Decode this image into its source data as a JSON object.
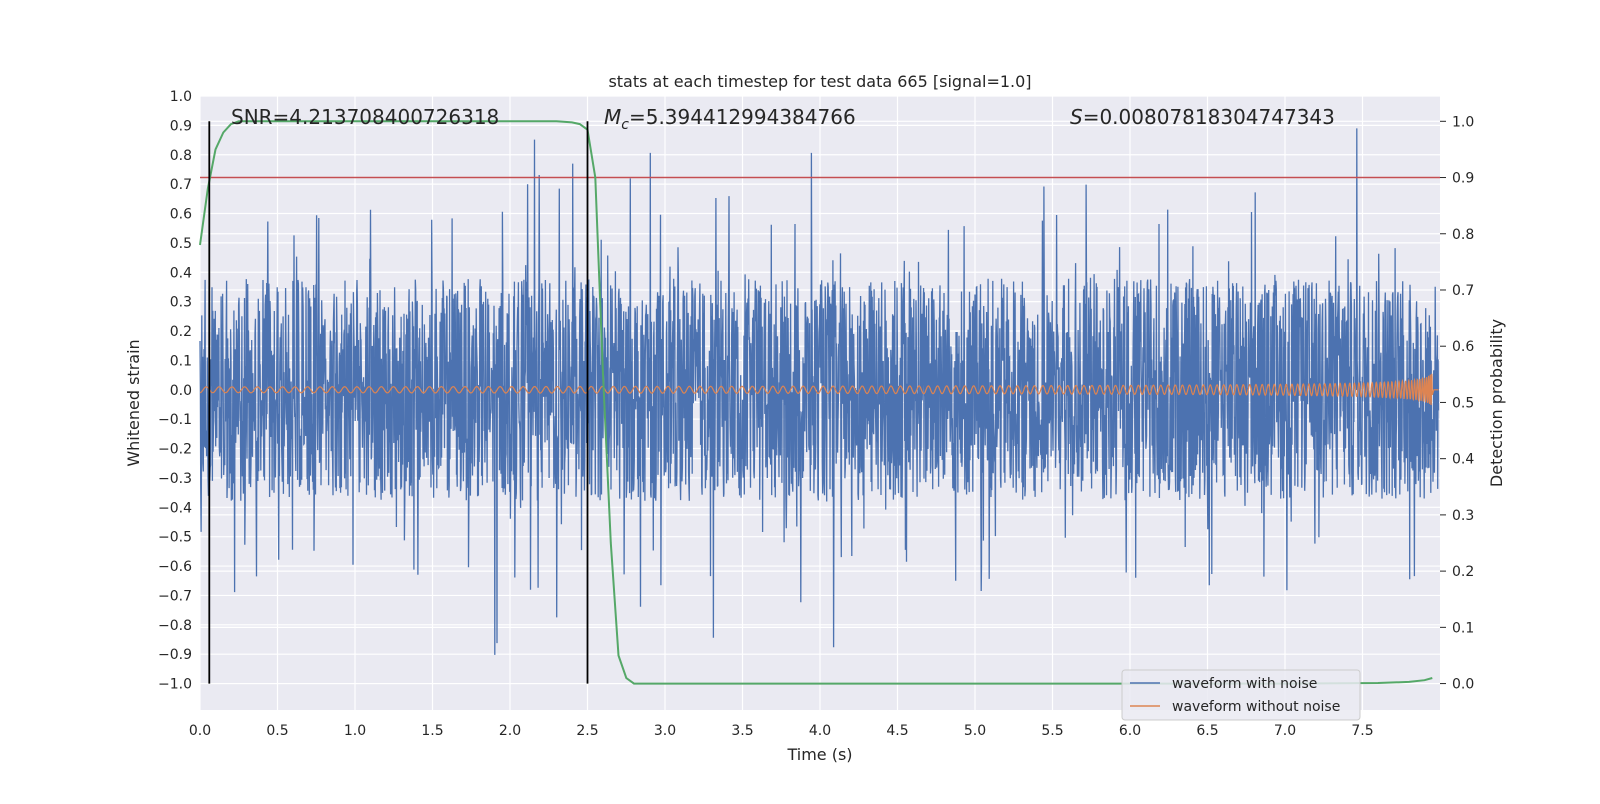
{
  "chart_data": {
    "type": "line",
    "title": "stats at each timestep for test data 665 [signal=1.0]",
    "xlabel": "Time (s)",
    "ylabel_left": "Whitened strain",
    "ylabel_right": "Detection probability",
    "xlim": [
      0.0,
      8.0
    ],
    "ylim_left": [
      -1.09,
      1.0
    ],
    "ylim_right": [
      -0.047,
      1.045
    ],
    "xticks": [
      "0.0",
      "0.5",
      "1.0",
      "1.5",
      "2.0",
      "2.5",
      "3.0",
      "3.5",
      "4.0",
      "4.5",
      "5.0",
      "5.5",
      "6.0",
      "6.5",
      "7.0",
      "7.5"
    ],
    "xtick_values": [
      0.0,
      0.5,
      1.0,
      1.5,
      2.0,
      2.5,
      3.0,
      3.5,
      4.0,
      4.5,
      5.0,
      5.5,
      6.0,
      6.5,
      7.0,
      7.5
    ],
    "yticks_left": [
      "−1.0",
      "−0.9",
      "−0.8",
      "−0.7",
      "−0.6",
      "−0.5",
      "−0.4",
      "−0.3",
      "−0.2",
      "−0.1",
      "0.0",
      "0.1",
      "0.2",
      "0.3",
      "0.4",
      "0.5",
      "0.6",
      "0.7",
      "0.8",
      "0.9",
      "1.0"
    ],
    "ytick_values_left": [
      -1.0,
      -0.9,
      -0.8,
      -0.7,
      -0.6,
      -0.5,
      -0.4,
      -0.3,
      -0.2,
      -0.1,
      0.0,
      0.1,
      0.2,
      0.3,
      0.4,
      0.5,
      0.6,
      0.7,
      0.8,
      0.9,
      1.0
    ],
    "yticks_right": [
      "0.0",
      "0.1",
      "0.2",
      "0.3",
      "0.4",
      "0.5",
      "0.6",
      "0.7",
      "0.8",
      "0.9",
      "1.0"
    ],
    "ytick_values_right": [
      0.0,
      0.1,
      0.2,
      0.3,
      0.4,
      0.5,
      0.6,
      0.7,
      0.8,
      0.9,
      1.0
    ],
    "annotations": {
      "snr": "SNR=4.213708400726318",
      "mc_symbol": "M",
      "mc_sub": "c",
      "mc_value": "=5.394412994384766",
      "s_symbol": "S",
      "s_value": "=0.00807818304747343"
    },
    "vertical_lines_x": [
      0.06,
      2.5
    ],
    "threshold_probability": 0.9,
    "series": [
      {
        "name": "waveform with noise",
        "color": "#4c72b0",
        "kind": "noise",
        "envelope_typical": 0.42,
        "peak_max": 0.92
      },
      {
        "name": "waveform without noise",
        "color": "#dd8452",
        "kind": "chirp",
        "amplitude_start": 0.01,
        "amplitude_end": 0.09,
        "end_time": 7.95
      },
      {
        "name": "Detection probability",
        "color": "#55a868",
        "axis": "right",
        "x": [
          0.0,
          0.05,
          0.1,
          0.15,
          0.2,
          0.25,
          0.3,
          0.5,
          1.0,
          1.5,
          2.0,
          2.3,
          2.4,
          2.45,
          2.5,
          2.55,
          2.6,
          2.65,
          2.7,
          2.75,
          2.8,
          2.9,
          3.5,
          5.0,
          7.0,
          7.6,
          7.8,
          7.9,
          7.95
        ],
        "y": [
          0.78,
          0.88,
          0.95,
          0.98,
          0.995,
          1.0,
          1.0,
          1.0,
          1.0,
          1.0,
          1.0,
          1.0,
          0.998,
          0.995,
          0.985,
          0.9,
          0.55,
          0.25,
          0.05,
          0.01,
          0.0,
          0.0,
          0.0,
          0.0,
          0.0,
          0.001,
          0.003,
          0.006,
          0.01
        ]
      }
    ],
    "legend": [
      "waveform with noise",
      "waveform without noise"
    ],
    "legend_position": "lower-right",
    "colors": {
      "background": "#eaeaf2",
      "grid": "#ffffff",
      "threshold": "#c44e52",
      "vline": "#000000"
    }
  }
}
